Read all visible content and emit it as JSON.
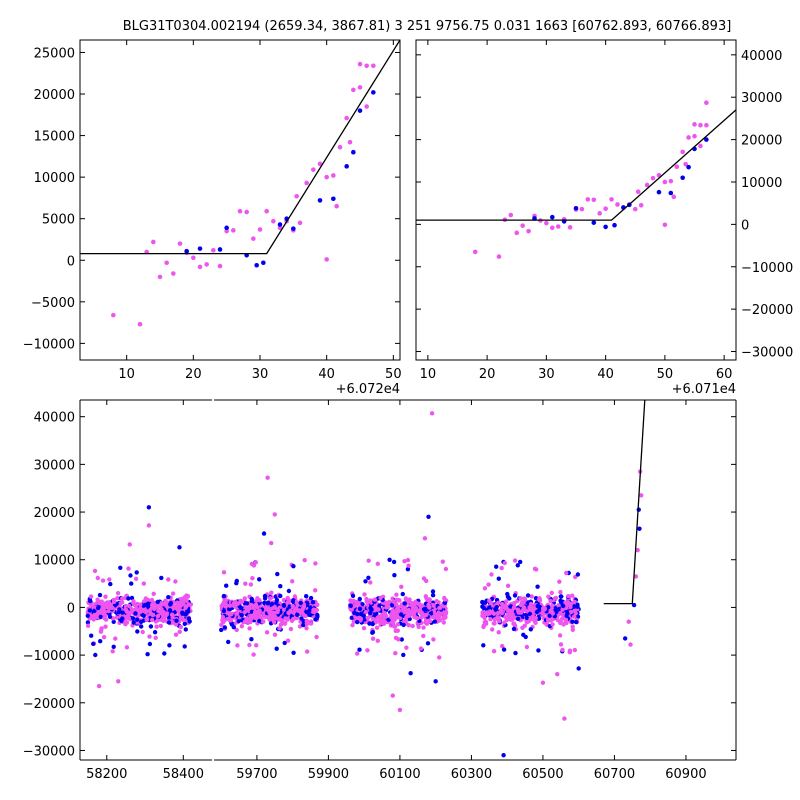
{
  "title": "BLG31T0304.002194 (2659.34, 3867.81)    3 251 9756.75 0.031 1663 [60762.893, 60766.893]",
  "colors": {
    "series_a": "#0000ee",
    "series_b": "#ee55ee",
    "model": "#000000"
  },
  "chart_data": [
    {
      "type": "scatter",
      "name": "top-left",
      "xlim": [
        3,
        51
      ],
      "ylim": [
        -12000,
        26500
      ],
      "x_ticks": [
        10,
        20,
        30,
        40,
        50
      ],
      "y_ticks": [
        -10000,
        -5000,
        0,
        5000,
        10000,
        15000,
        20000,
        25000
      ],
      "y_axis_side": "left",
      "x_offset_label": "+6.072e4",
      "model": [
        [
          3,
          800
        ],
        [
          31,
          800
        ],
        [
          51,
          26500
        ]
      ],
      "series_blue": [
        [
          19,
          1100
        ],
        [
          21,
          1400
        ],
        [
          24,
          1300
        ],
        [
          25,
          3900
        ],
        [
          28,
          600
        ],
        [
          29.5,
          -600
        ],
        [
          30.5,
          -300
        ],
        [
          33,
          4300
        ],
        [
          34,
          5000
        ],
        [
          35,
          3800
        ],
        [
          39,
          7200
        ],
        [
          41,
          7400
        ],
        [
          43,
          11300
        ],
        [
          44,
          13000
        ],
        [
          45,
          18000
        ],
        [
          47,
          20200
        ]
      ],
      "series_pink": [
        [
          8,
          -6600
        ],
        [
          12,
          -7700
        ],
        [
          13,
          1000
        ],
        [
          14,
          2200
        ],
        [
          15,
          -2000
        ],
        [
          16,
          -300
        ],
        [
          17,
          -1600
        ],
        [
          18,
          2000
        ],
        [
          19,
          900
        ],
        [
          20,
          300
        ],
        [
          21,
          -800
        ],
        [
          22,
          -500
        ],
        [
          23,
          1200
        ],
        [
          24,
          -700
        ],
        [
          25,
          3500
        ],
        [
          26,
          3600
        ],
        [
          27,
          5900
        ],
        [
          28,
          5800
        ],
        [
          29,
          2600
        ],
        [
          30,
          3700
        ],
        [
          31,
          5900
        ],
        [
          32,
          4700
        ],
        [
          33,
          3900
        ],
        [
          34,
          4700
        ],
        [
          35,
          3600
        ],
        [
          35.5,
          7700
        ],
        [
          36,
          4500
        ],
        [
          37,
          9300
        ],
        [
          38,
          10900
        ],
        [
          39,
          11600
        ],
        [
          40,
          10000
        ],
        [
          41,
          10200
        ],
        [
          41.5,
          6500
        ],
        [
          40,
          100
        ],
        [
          42,
          13600
        ],
        [
          43,
          17100
        ],
        [
          43.5,
          14200
        ],
        [
          44,
          20500
        ],
        [
          45,
          20800
        ],
        [
          45,
          23600
        ],
        [
          46,
          18500
        ],
        [
          46,
          23400
        ],
        [
          47,
          23400
        ]
      ]
    },
    {
      "type": "scatter",
      "name": "top-right",
      "xlim": [
        8,
        62
      ],
      "ylim": [
        -32000,
        43500
      ],
      "x_ticks": [
        10,
        20,
        30,
        40,
        50,
        60
      ],
      "y_ticks": [
        -30000,
        -20000,
        -10000,
        0,
        10000,
        20000,
        30000,
        40000
      ],
      "y_axis_side": "right",
      "x_offset_label": "+6.071e4",
      "model": [
        [
          8,
          1000
        ],
        [
          41,
          1000
        ],
        [
          62,
          27000
        ]
      ],
      "series_blue": [
        [
          28,
          1400
        ],
        [
          31,
          1700
        ],
        [
          33,
          700
        ],
        [
          35,
          3800
        ],
        [
          38,
          400
        ],
        [
          40,
          -600
        ],
        [
          41.5,
          -200
        ],
        [
          43,
          4000
        ],
        [
          44,
          4600
        ],
        [
          49,
          7600
        ],
        [
          51,
          7400
        ],
        [
          53,
          11000
        ],
        [
          54,
          13500
        ],
        [
          55,
          17800
        ],
        [
          57,
          20000
        ]
      ],
      "series_pink": [
        [
          18,
          -6500
        ],
        [
          22,
          -7600
        ],
        [
          23,
          1100
        ],
        [
          24,
          2200
        ],
        [
          25,
          -2000
        ],
        [
          26,
          -300
        ],
        [
          27,
          -1600
        ],
        [
          28,
          2000
        ],
        [
          29,
          900
        ],
        [
          30,
          300
        ],
        [
          31,
          -800
        ],
        [
          32,
          -500
        ],
        [
          33,
          1200
        ],
        [
          34,
          -700
        ],
        [
          35,
          3500
        ],
        [
          36,
          3600
        ],
        [
          37,
          5900
        ],
        [
          38,
          5800
        ],
        [
          39,
          2600
        ],
        [
          40,
          3700
        ],
        [
          41,
          5900
        ],
        [
          42,
          4700
        ],
        [
          43,
          3900
        ],
        [
          44,
          4700
        ],
        [
          45,
          3600
        ],
        [
          45.5,
          7700
        ],
        [
          46,
          4500
        ],
        [
          47,
          9300
        ],
        [
          48,
          10900
        ],
        [
          49,
          11600
        ],
        [
          50,
          10000
        ],
        [
          51,
          10200
        ],
        [
          50,
          -100
        ],
        [
          51.5,
          6500
        ],
        [
          52,
          13600
        ],
        [
          53,
          17100
        ],
        [
          53.5,
          14200
        ],
        [
          54,
          20500
        ],
        [
          55,
          20800
        ],
        [
          55,
          23600
        ],
        [
          56,
          18500
        ],
        [
          56,
          23400
        ],
        [
          57,
          23400
        ],
        [
          57,
          28700
        ]
      ]
    },
    {
      "type": "scatter",
      "name": "bottom",
      "xlim": [
        58130,
        61040
      ],
      "ylim": [
        -32000,
        43500
      ],
      "x_ticks": [
        58200,
        58400,
        59700,
        59900,
        60100,
        60300,
        60500,
        60700,
        60900
      ],
      "y_ticks": [
        -30000,
        -20000,
        -10000,
        0,
        10000,
        20000,
        30000,
        40000
      ],
      "y_axis_side": "left",
      "model": [
        [
          60670,
          800
        ],
        [
          60750,
          800
        ],
        [
          60785,
          43500
        ]
      ],
      "outliers": [
        [
          58310,
          21000
        ],
        [
          58310,
          17200
        ],
        [
          58260,
          13200
        ],
        [
          58390,
          12600
        ],
        [
          59730,
          27200
        ],
        [
          59750,
          19500
        ],
        [
          59720,
          15500
        ],
        [
          59740,
          13500
        ],
        [
          60190,
          40700
        ],
        [
          60180,
          19000
        ],
        [
          60170,
          14500
        ],
        [
          60220,
          9600
        ],
        [
          60200,
          -15500
        ],
        [
          60100,
          -21500
        ],
        [
          60080,
          -18500
        ],
        [
          60390,
          -31000
        ],
        [
          60560,
          -23300
        ],
        [
          60210,
          -10500
        ],
        [
          60130,
          -13800
        ],
        [
          60500,
          -15800
        ],
        [
          60540,
          -14000
        ],
        [
          60600,
          -12800
        ],
        [
          58180,
          -16500
        ],
        [
          58230,
          -15500
        ],
        [
          60730,
          -6500
        ],
        [
          60745,
          -7800
        ],
        [
          60740,
          -3000
        ],
        [
          60755,
          500
        ],
        [
          60760,
          6500
        ],
        [
          60765,
          12000
        ],
        [
          60770,
          16500
        ],
        [
          60775,
          23500
        ],
        [
          60772,
          28500
        ],
        [
          60768,
          20500
        ]
      ],
      "season_gap": [
        58475,
        59580
      ],
      "seasons": [
        [
          58150,
          58420
        ],
        [
          59600,
          59870
        ],
        [
          59960,
          60230
        ],
        [
          60330,
          60600
        ]
      ]
    }
  ]
}
